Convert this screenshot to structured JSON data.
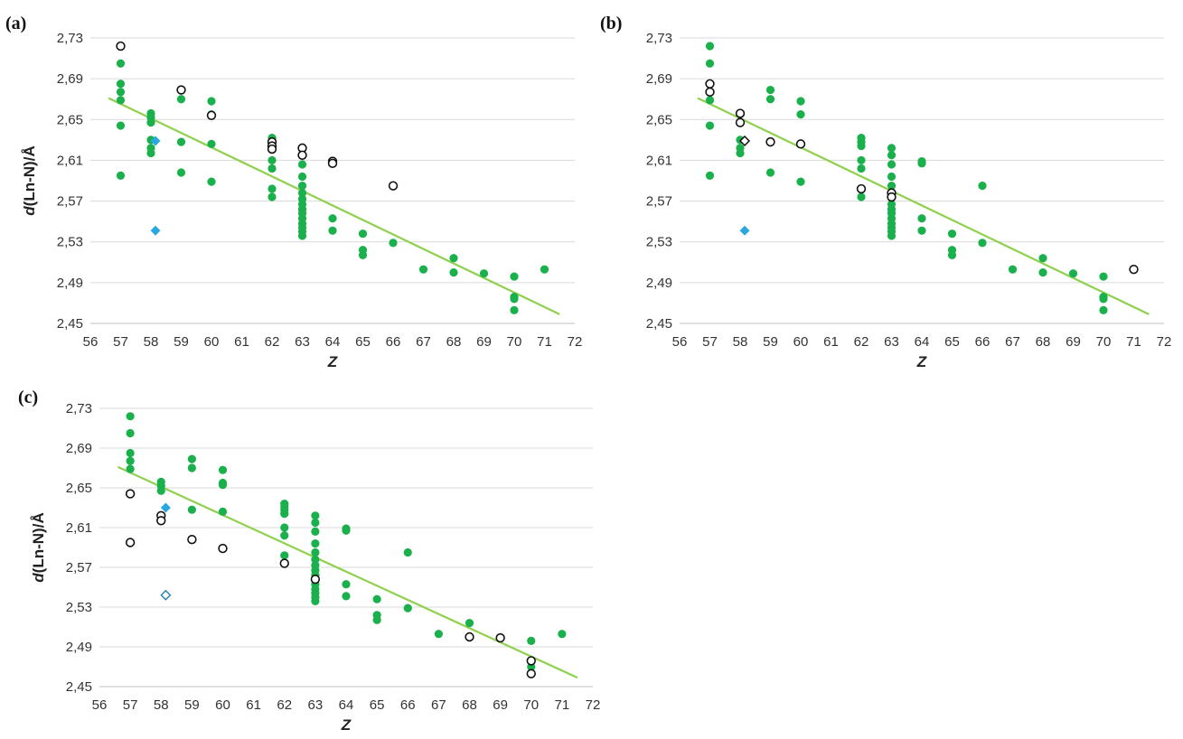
{
  "chart_data": [
    {
      "type": "scatter",
      "panel_label": "(a)",
      "xlabel_italic": "Z",
      "ylabel_italic": "d",
      "ylabel_rest": "(Ln-N)/Å",
      "xlim": [
        56,
        72
      ],
      "ylim": [
        2.45,
        2.73
      ],
      "x_ticks": [
        "56",
        "57",
        "58",
        "59",
        "60",
        "61",
        "62",
        "63",
        "64",
        "65",
        "66",
        "67",
        "68",
        "69",
        "70",
        "71",
        "72"
      ],
      "y_ticks": [
        "2,45",
        "2,49",
        "2,53",
        "2,57",
        "2,61",
        "2,65",
        "2,69",
        "2,73"
      ],
      "grid": "horizontal",
      "colors": {
        "filled": "#1ab04c",
        "open_stroke": "#111111",
        "diamond": "#29a8e0",
        "trend": "#8fd14f"
      },
      "trendline": {
        "x": [
          56.6,
          71.5
        ],
        "y": [
          2.671,
          2.459
        ]
      },
      "series": [
        {
          "marker": "filled-circle",
          "points": [
            [
              57,
              2.705
            ],
            [
              57,
              2.685
            ],
            [
              57,
              2.677
            ],
            [
              57,
              2.669
            ],
            [
              57,
              2.644
            ],
            [
              57,
              2.595
            ],
            [
              58,
              2.656
            ],
            [
              58,
              2.652
            ],
            [
              58,
              2.647
            ],
            [
              58,
              2.63
            ],
            [
              58,
              2.622
            ],
            [
              58,
              2.617
            ],
            [
              59,
              2.67
            ],
            [
              59,
              2.628
            ],
            [
              59,
              2.598
            ],
            [
              60,
              2.668
            ],
            [
              60,
              2.655
            ],
            [
              60,
              2.626
            ],
            [
              60,
              2.589
            ],
            [
              62,
              2.632
            ],
            [
              62,
              2.628
            ],
            [
              62,
              2.61
            ],
            [
              62,
              2.602
            ],
            [
              62,
              2.582
            ],
            [
              62,
              2.574
            ],
            [
              63,
              2.606
            ],
            [
              63,
              2.594
            ],
            [
              63,
              2.585
            ],
            [
              63,
              2.578
            ],
            [
              63,
              2.572
            ],
            [
              63,
              2.567
            ],
            [
              63,
              2.562
            ],
            [
              63,
              2.558
            ],
            [
              63,
              2.553
            ],
            [
              63,
              2.548
            ],
            [
              63,
              2.544
            ],
            [
              63,
              2.54
            ],
            [
              63,
              2.536
            ],
            [
              64,
              2.607
            ],
            [
              64,
              2.553
            ],
            [
              64,
              2.541
            ],
            [
              65,
              2.538
            ],
            [
              65,
              2.522
            ],
            [
              65,
              2.517
            ],
            [
              66,
              2.529
            ],
            [
              67,
              2.503
            ],
            [
              68,
              2.514
            ],
            [
              68,
              2.5
            ],
            [
              69,
              2.499
            ],
            [
              70,
              2.496
            ],
            [
              70,
              2.476
            ],
            [
              70,
              2.474
            ],
            [
              70,
              2.463
            ],
            [
              71,
              2.503
            ]
          ]
        },
        {
          "marker": "open-circle",
          "points": [
            [
              57,
              2.722
            ],
            [
              59,
              2.679
            ],
            [
              60,
              2.654
            ],
            [
              62,
              2.628
            ],
            [
              62,
              2.624
            ],
            [
              62,
              2.621
            ],
            [
              63,
              2.622
            ],
            [
              63,
              2.615
            ],
            [
              64,
              2.609
            ],
            [
              64,
              2.607
            ],
            [
              66,
              2.585
            ]
          ]
        },
        {
          "marker": "filled-diamond",
          "points": [
            [
              58.15,
              2.629
            ],
            [
              58.15,
              2.541
            ]
          ]
        }
      ]
    },
    {
      "type": "scatter",
      "panel_label": "(b)",
      "xlabel_italic": "Z",
      "ylabel_italic": "",
      "ylabel_rest": "",
      "xlim": [
        56,
        72
      ],
      "ylim": [
        2.45,
        2.73
      ],
      "x_ticks": [
        "56",
        "57",
        "58",
        "59",
        "60",
        "61",
        "62",
        "63",
        "64",
        "65",
        "66",
        "67",
        "68",
        "69",
        "70",
        "71",
        "72"
      ],
      "y_ticks": [
        "2,45",
        "2,49",
        "2,53",
        "2,57",
        "2,61",
        "2,65",
        "2,69",
        "2,73"
      ],
      "grid": "horizontal",
      "colors": {
        "filled": "#1ab04c",
        "open_stroke": "#111111",
        "diamond": "#29a8e0",
        "trend": "#8fd14f"
      },
      "trendline": {
        "x": [
          56.6,
          71.5
        ],
        "y": [
          2.671,
          2.459
        ]
      },
      "series": [
        {
          "marker": "filled-circle",
          "points": [
            [
              57,
              2.722
            ],
            [
              57,
              2.705
            ],
            [
              57,
              2.669
            ],
            [
              57,
              2.644
            ],
            [
              57,
              2.595
            ],
            [
              58,
              2.63
            ],
            [
              58,
              2.622
            ],
            [
              58,
              2.617
            ],
            [
              59,
              2.679
            ],
            [
              59,
              2.67
            ],
            [
              59,
              2.598
            ],
            [
              60,
              2.668
            ],
            [
              60,
              2.655
            ],
            [
              60,
              2.589
            ],
            [
              62,
              2.632
            ],
            [
              62,
              2.628
            ],
            [
              62,
              2.624
            ],
            [
              62,
              2.61
            ],
            [
              62,
              2.602
            ],
            [
              62,
              2.574
            ],
            [
              63,
              2.622
            ],
            [
              63,
              2.615
            ],
            [
              63,
              2.606
            ],
            [
              63,
              2.594
            ],
            [
              63,
              2.585
            ],
            [
              63,
              2.567
            ],
            [
              63,
              2.562
            ],
            [
              63,
              2.558
            ],
            [
              63,
              2.553
            ],
            [
              63,
              2.548
            ],
            [
              63,
              2.544
            ],
            [
              63,
              2.54
            ],
            [
              63,
              2.536
            ],
            [
              64,
              2.609
            ],
            [
              64,
              2.607
            ],
            [
              64,
              2.553
            ],
            [
              64,
              2.541
            ],
            [
              65,
              2.538
            ],
            [
              65,
              2.522
            ],
            [
              65,
              2.517
            ],
            [
              66,
              2.585
            ],
            [
              66,
              2.529
            ],
            [
              67,
              2.503
            ],
            [
              68,
              2.514
            ],
            [
              68,
              2.5
            ],
            [
              69,
              2.499
            ],
            [
              70,
              2.496
            ],
            [
              70,
              2.476
            ],
            [
              70,
              2.474
            ],
            [
              70,
              2.463
            ]
          ]
        },
        {
          "marker": "open-circle",
          "points": [
            [
              57,
              2.685
            ],
            [
              57,
              2.677
            ],
            [
              58,
              2.656
            ],
            [
              58,
              2.647
            ],
            [
              59,
              2.628
            ],
            [
              60,
              2.626
            ],
            [
              62,
              2.582
            ],
            [
              63,
              2.578
            ],
            [
              63,
              2.574
            ],
            [
              71,
              2.503
            ]
          ]
        },
        {
          "marker": "filled-diamond",
          "points": [
            [
              58.15,
              2.541
            ]
          ]
        },
        {
          "marker": "open-diamond-dark",
          "points": [
            [
              58.15,
              2.629
            ]
          ]
        }
      ]
    },
    {
      "type": "scatter",
      "panel_label": "(c)",
      "xlabel_italic": "Z",
      "ylabel_italic": "d",
      "ylabel_rest": "(Ln-N)/Å",
      "xlim": [
        56,
        72
      ],
      "ylim": [
        2.45,
        2.73
      ],
      "x_ticks": [
        "56",
        "57",
        "58",
        "59",
        "60",
        "61",
        "62",
        "63",
        "64",
        "65",
        "66",
        "67",
        "68",
        "69",
        "70",
        "71",
        "72"
      ],
      "y_ticks": [
        "2,45",
        "2,49",
        "2,53",
        "2,57",
        "2,61",
        "2,65",
        "2,69",
        "2,73"
      ],
      "grid": "horizontal",
      "colors": {
        "filled": "#1ab04c",
        "open_stroke": "#111111",
        "diamond": "#29a8e0",
        "open_diamond": "#2a7fa8",
        "trend": "#8fd14f"
      },
      "trendline": {
        "x": [
          56.6,
          71.5
        ],
        "y": [
          2.671,
          2.459
        ]
      },
      "series": [
        {
          "marker": "filled-circle",
          "points": [
            [
              57,
              2.722
            ],
            [
              57,
              2.705
            ],
            [
              57,
              2.685
            ],
            [
              57,
              2.677
            ],
            [
              57,
              2.669
            ],
            [
              58,
              2.656
            ],
            [
              58,
              2.652
            ],
            [
              58,
              2.647
            ],
            [
              59,
              2.679
            ],
            [
              59,
              2.67
            ],
            [
              59,
              2.628
            ],
            [
              60,
              2.668
            ],
            [
              60,
              2.655
            ],
            [
              60,
              2.653
            ],
            [
              60,
              2.626
            ],
            [
              62,
              2.634
            ],
            [
              62,
              2.631
            ],
            [
              62,
              2.628
            ],
            [
              62,
              2.624
            ],
            [
              62,
              2.61
            ],
            [
              62,
              2.602
            ],
            [
              62,
              2.582
            ],
            [
              63,
              2.622
            ],
            [
              63,
              2.615
            ],
            [
              63,
              2.606
            ],
            [
              63,
              2.594
            ],
            [
              63,
              2.585
            ],
            [
              63,
              2.578
            ],
            [
              63,
              2.572
            ],
            [
              63,
              2.567
            ],
            [
              63,
              2.562
            ],
            [
              63,
              2.553
            ],
            [
              63,
              2.548
            ],
            [
              63,
              2.544
            ],
            [
              63,
              2.54
            ],
            [
              63,
              2.536
            ],
            [
              64,
              2.609
            ],
            [
              64,
              2.607
            ],
            [
              64,
              2.553
            ],
            [
              64,
              2.541
            ],
            [
              65,
              2.538
            ],
            [
              65,
              2.522
            ],
            [
              65,
              2.517
            ],
            [
              66,
              2.585
            ],
            [
              66,
              2.529
            ],
            [
              67,
              2.503
            ],
            [
              68,
              2.514
            ],
            [
              70,
              2.496
            ],
            [
              70,
              2.47
            ],
            [
              71,
              2.503
            ]
          ]
        },
        {
          "marker": "open-circle",
          "points": [
            [
              57,
              2.644
            ],
            [
              57,
              2.595
            ],
            [
              58,
              2.622
            ],
            [
              58,
              2.617
            ],
            [
              59,
              2.598
            ],
            [
              60,
              2.589
            ],
            [
              62,
              2.574
            ],
            [
              63,
              2.558
            ],
            [
              68,
              2.5
            ],
            [
              69,
              2.499
            ],
            [
              70,
              2.476
            ],
            [
              70,
              2.463
            ]
          ]
        },
        {
          "marker": "filled-diamond",
          "points": [
            [
              58.15,
              2.63
            ]
          ]
        },
        {
          "marker": "open-diamond-blue",
          "points": [
            [
              58.15,
              2.542
            ]
          ]
        }
      ]
    }
  ]
}
